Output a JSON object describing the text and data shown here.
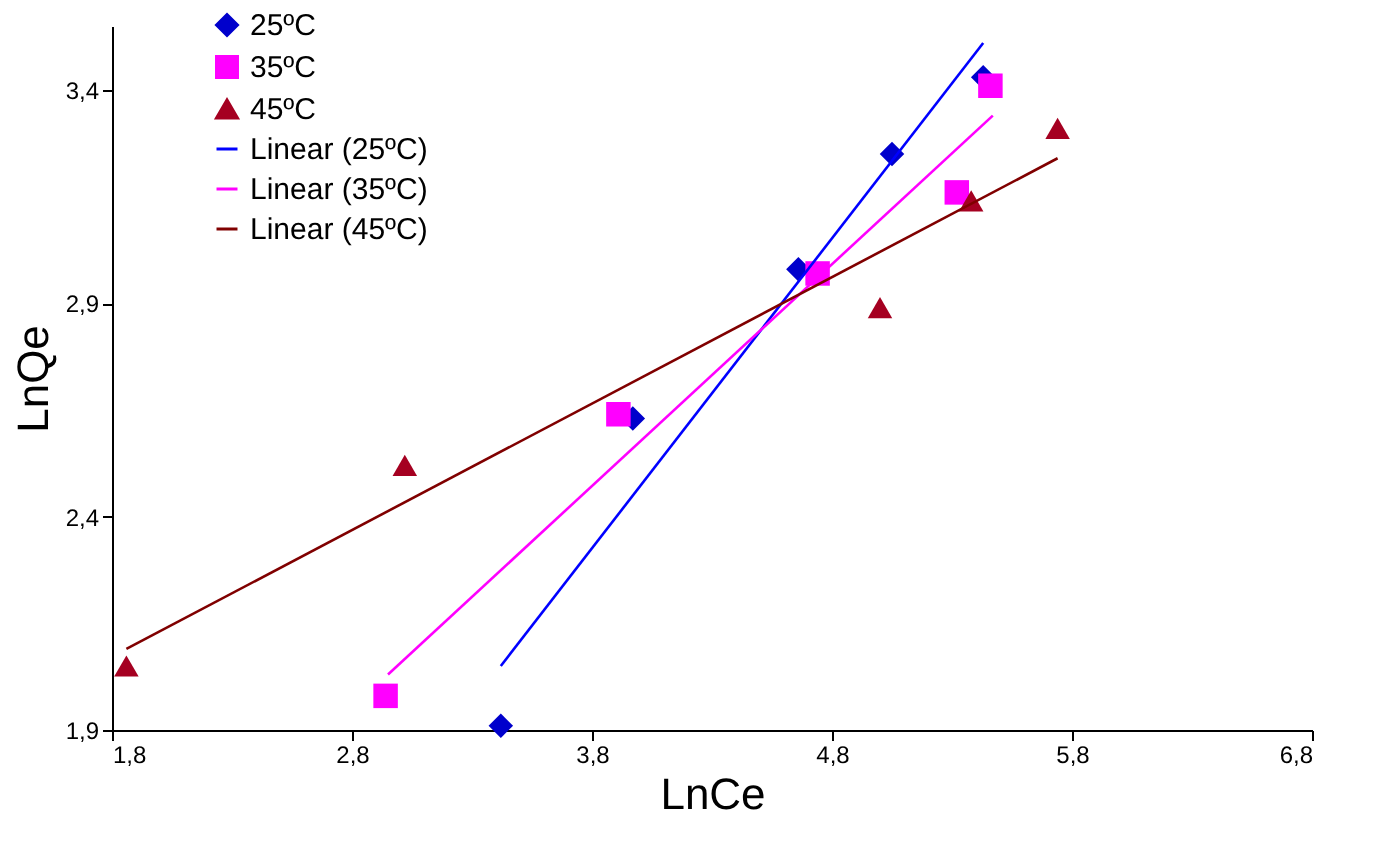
{
  "chart_data": {
    "type": "scatter",
    "xlabel": "LnCe",
    "ylabel": "LnQe",
    "xlim": [
      1.8,
      6.8
    ],
    "ylim": [
      1.9,
      3.55
    ],
    "xticks": [
      {
        "value": 1.8,
        "label": "1,8"
      },
      {
        "value": 2.8,
        "label": "2,8"
      },
      {
        "value": 3.8,
        "label": "3,8"
      },
      {
        "value": 4.8,
        "label": "4,8"
      },
      {
        "value": 5.8,
        "label": "5,8"
      },
      {
        "value": 6.8,
        "label": "6,8"
      }
    ],
    "yticks": [
      {
        "value": 1.9,
        "label": "1,9"
      },
      {
        "value": 2.4,
        "label": "2,4"
      },
      {
        "value": 2.9,
        "label": "2,9"
      },
      {
        "value": 3.4,
        "label": "3,4"
      }
    ],
    "grid": false,
    "legend": "top left",
    "series": [
      {
        "name": "25ºC",
        "marker": "diamond",
        "color": "#0000cc",
        "x": [
          3.42,
          3.97,
          4.66,
          5.05,
          5.43
        ],
        "values": [
          1.91,
          2.63,
          2.98,
          3.25,
          3.43
        ]
      },
      {
        "name": "35ºC",
        "marker": "square",
        "color": "#ff00ff",
        "x": [
          2.94,
          3.91,
          4.74,
          5.32,
          5.46
        ],
        "values": [
          1.98,
          2.64,
          2.97,
          3.16,
          3.41
        ]
      },
      {
        "name": "45ºC",
        "marker": "triangle",
        "color": "#a50021",
        "x": [
          1.86,
          3.02,
          5.0,
          5.38,
          5.74
        ],
        "values": [
          2.05,
          2.52,
          2.89,
          3.14,
          3.31
        ]
      },
      {
        "name": "Linear (25ºC)",
        "type": "line",
        "color": "#0000ff",
        "x": [
          3.42,
          5.43
        ],
        "values": [
          2.05,
          3.51
        ]
      },
      {
        "name": "Linear (35ºC)",
        "type": "line",
        "color": "#ff00ff",
        "x": [
          2.95,
          5.47
        ],
        "values": [
          2.03,
          3.34
        ]
      },
      {
        "name": "Linear (45ºC)",
        "type": "line",
        "color": "#800000",
        "x": [
          1.86,
          5.74
        ],
        "values": [
          2.09,
          3.24
        ]
      }
    ]
  }
}
